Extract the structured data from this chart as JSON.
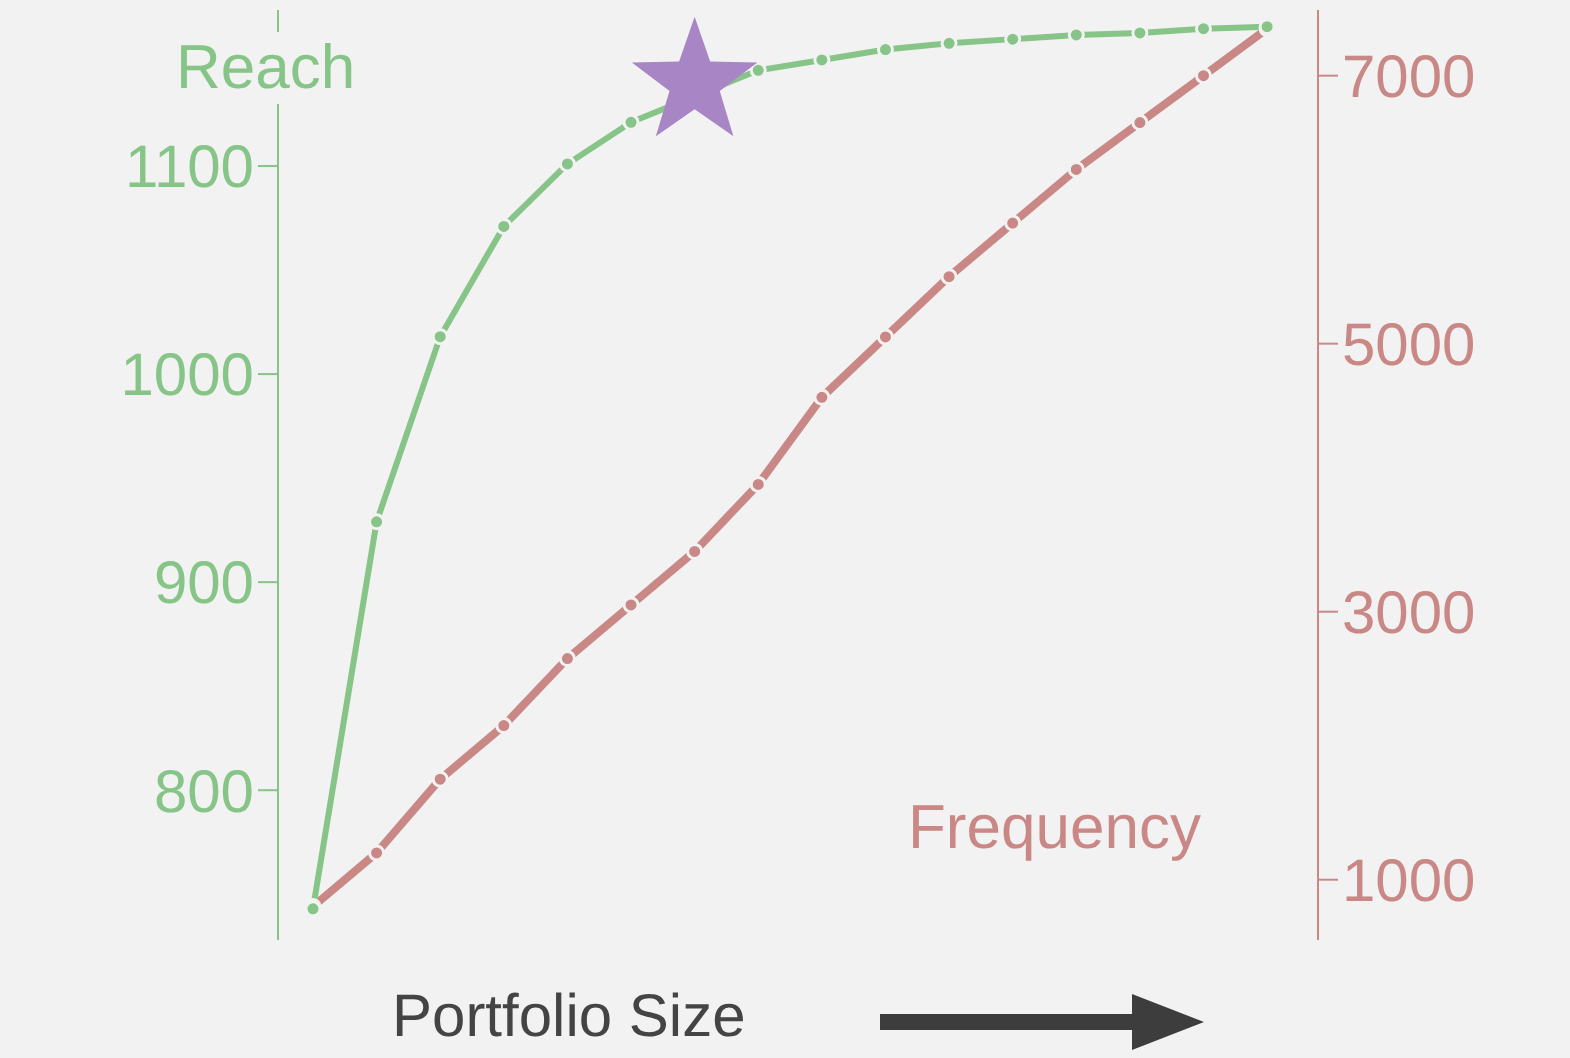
{
  "chart_data": {
    "type": "line",
    "xlabel": "Portfolio Size",
    "ylabel": "Reach",
    "y2label": "Frequency",
    "categories": [
      null,
      null,
      null,
      null,
      null,
      null,
      null,
      null,
      null,
      null,
      null,
      null,
      null,
      null,
      null,
      null
    ],
    "series": [
      {
        "color": "#86c487",
        "values": [
          743,
          929,
          1018,
          1071,
          1101,
          1121,
          null,
          1146,
          1151,
          1156,
          1159,
          1161,
          1163,
          1164,
          1166,
          1167
        ]
      },
      {
        "color": "#c98885",
        "axis": "y2",
        "values": [
          800,
          1200,
          1750,
          2150,
          2650,
          3050,
          3450,
          3950,
          4600,
          5050,
          5500,
          5900,
          6300,
          6650,
          7000,
          7350
        ]
      },
      {
        "type": "scatter",
        "color": "#a885c4",
        "marker": "star",
        "values": [
          null,
          null,
          null,
          null,
          null,
          null,
          1140,
          null,
          null,
          null,
          null,
          null,
          null,
          null,
          null,
          null
        ]
      }
    ],
    "ylim": [
      728,
      1175
    ],
    "yticks": [
      800,
      900,
      1000,
      1100
    ],
    "y2lim": [
      550,
      7490
    ],
    "y2ticks": [
      1000,
      3000,
      5000,
      7000
    ],
    "marker": "circle"
  }
}
